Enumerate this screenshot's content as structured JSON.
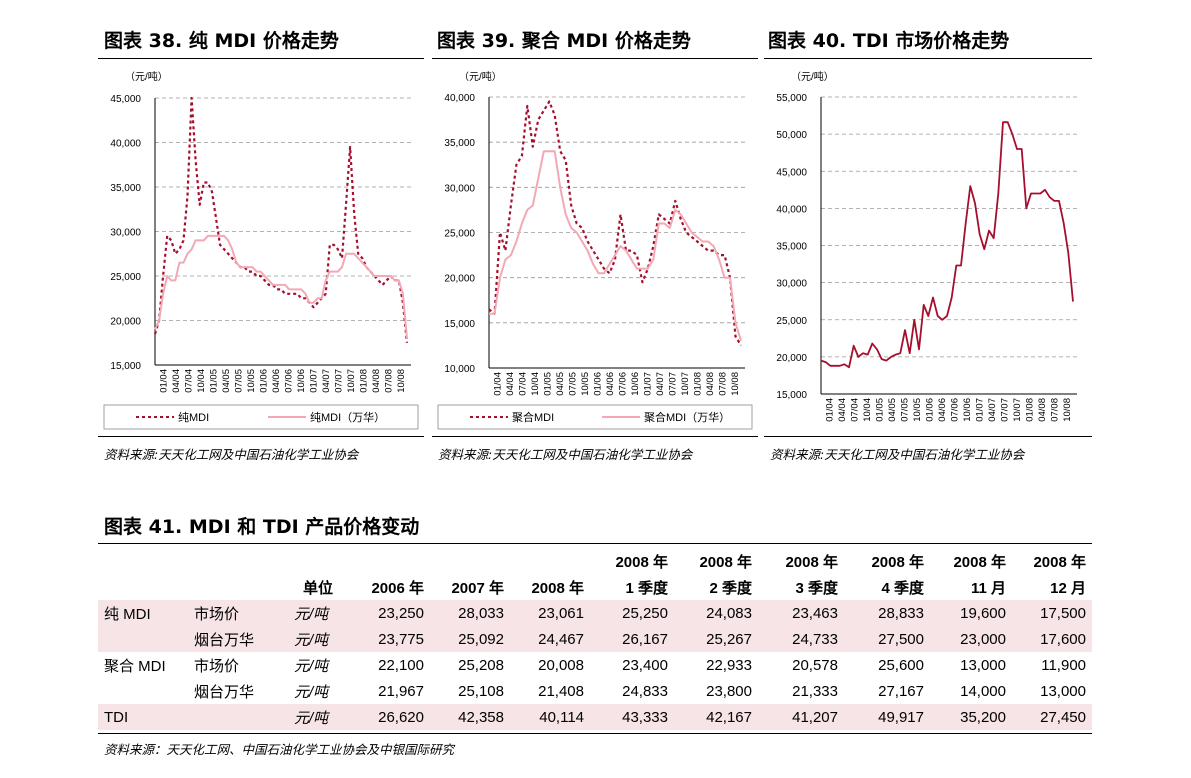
{
  "charts_header": [
    {
      "title": "图表 38.  纯 MDI 价格走势"
    },
    {
      "title": "图表 39.  聚合 MDI 价格走势"
    },
    {
      "title": "图表 40. TDI 市场价格走势"
    }
  ],
  "source_note": "资料来源:天天化工网及中国石油化学工业协会",
  "colors": {
    "dark_red": "#a50f2d",
    "light_pink": "#f2a9b4",
    "grid": "#999999",
    "shade": "#f6e4e6"
  },
  "chart_data": [
    {
      "type": "line",
      "unit_label": "（元/吨）",
      "ylim": [
        15000,
        45000
      ],
      "y_ticks": [
        "15,000",
        "20,000",
        "25,000",
        "30,000",
        "35,000",
        "40,000",
        "45,000"
      ],
      "x_tick_labels": [
        "01/04",
        "04/04",
        "07/04",
        "10/04",
        "01/05",
        "04/05",
        "07/05",
        "10/05",
        "01/06",
        "04/06",
        "07/06",
        "10/06",
        "01/07",
        "04/07",
        "07/07",
        "10/07",
        "01/08",
        "04/08",
        "07/08",
        "10/08"
      ],
      "grid": "horizontal-dashed",
      "legend_position": "bottom",
      "series": [
        {
          "name": "纯MDI",
          "style": "dotted",
          "color": "#a50f2d",
          "values": [
            18500,
            20000,
            25000,
            29500,
            29000,
            27500,
            28000,
            29000,
            34000,
            45000,
            38000,
            33000,
            35500,
            35500,
            34500,
            31500,
            28500,
            28000,
            27500,
            27000,
            26500,
            26000,
            26000,
            25500,
            25500,
            25000,
            25000,
            24500,
            24000,
            24000,
            23500,
            23500,
            23000,
            23000,
            23000,
            23000,
            22500,
            22500,
            22000,
            21500,
            22000,
            22500,
            23000,
            28500,
            28500,
            28000,
            27000,
            33000,
            39500,
            32000,
            27500,
            27000,
            26000,
            25500,
            25000,
            24500,
            24000,
            24500,
            25000,
            24500,
            24500,
            22000,
            17500
          ]
        },
        {
          "name": "纯MDI（万华）",
          "style": "solid",
          "color": "#f2a9b4",
          "values": [
            19000,
            20000,
            23000,
            25000,
            24500,
            24500,
            26500,
            26500,
            27500,
            28000,
            29000,
            29000,
            29000,
            29500,
            29500,
            29500,
            29500,
            29500,
            29000,
            28000,
            26500,
            26000,
            26000,
            26000,
            26000,
            25500,
            25500,
            25000,
            24500,
            24000,
            24000,
            24000,
            24000,
            23500,
            23500,
            23500,
            23500,
            23000,
            22000,
            22000,
            22500,
            22500,
            24500,
            25500,
            25500,
            25500,
            26000,
            27500,
            27500,
            27500,
            27000,
            26500,
            26000,
            25500,
            25000,
            25000,
            25000,
            25000,
            25000,
            24500,
            24500,
            23000,
            18000
          ]
        }
      ]
    },
    {
      "type": "line",
      "unit_label": "（元/吨）",
      "ylim": [
        10000,
        40000
      ],
      "y_ticks": [
        "10,000",
        "15,000",
        "20,000",
        "25,000",
        "30,000",
        "35,000",
        "40,000"
      ],
      "x_tick_labels": [
        "01/04",
        "04/04",
        "07/04",
        "10/04",
        "01/05",
        "04/05",
        "07/05",
        "10/05",
        "01/06",
        "04/06",
        "07/06",
        "10/06",
        "01/07",
        "04/07",
        "07/07",
        "10/07",
        "01/08",
        "04/08",
        "07/08",
        "10/08"
      ],
      "grid": "horizontal-dashed",
      "legend_position": "bottom",
      "series": [
        {
          "name": "聚合MDI",
          "style": "dotted",
          "color": "#a50f2d",
          "values": [
            16500,
            16000,
            25000,
            23000,
            28000,
            32500,
            33500,
            39000,
            34500,
            37500,
            38500,
            39500,
            38000,
            34000,
            33000,
            28000,
            26000,
            25500,
            24000,
            23000,
            22000,
            21000,
            20500,
            22000,
            27000,
            23000,
            23000,
            22500,
            19500,
            21000,
            23500,
            27000,
            26500,
            26000,
            28500,
            26500,
            25000,
            24500,
            24000,
            23500,
            23000,
            23000,
            22500,
            22500,
            20000,
            13500,
            12500
          ]
        },
        {
          "name": "聚合MDI（万华）",
          "style": "solid",
          "color": "#f2a9b4",
          "values": [
            16000,
            16000,
            20000,
            22000,
            22500,
            24000,
            26000,
            27500,
            28000,
            31000,
            34000,
            34000,
            34000,
            30000,
            27000,
            25500,
            25000,
            24000,
            23000,
            21500,
            20500,
            20500,
            21500,
            22500,
            23500,
            23000,
            22000,
            21000,
            21000,
            21000,
            22000,
            26000,
            26000,
            25500,
            27500,
            27000,
            26000,
            25000,
            24500,
            24000,
            24000,
            23500,
            22000,
            20000,
            20000,
            15000,
            13000
          ]
        }
      ]
    },
    {
      "type": "line",
      "unit_label": "（元/吨）",
      "ylim": [
        15000,
        55000
      ],
      "y_ticks": [
        "15,000",
        "20,000",
        "25,000",
        "30,000",
        "35,000",
        "40,000",
        "45,000",
        "50,000",
        "55,000"
      ],
      "x_tick_labels": [
        "01/04",
        "04/04",
        "07/04",
        "10/04",
        "01/05",
        "04/05",
        "07/05",
        "10/05",
        "01/06",
        "04/06",
        "07/06",
        "10/06",
        "01/07",
        "04/07",
        "07/07",
        "10/07",
        "01/08",
        "04/08",
        "07/08",
        "10/08"
      ],
      "grid": "horizontal-dashed",
      "series": [
        {
          "name": "",
          "style": "solid",
          "color": "#a50f2d",
          "values": [
            19500,
            19300,
            18800,
            18800,
            18800,
            19000,
            18600,
            21500,
            20000,
            20500,
            20300,
            21800,
            21000,
            19700,
            19500,
            20000,
            20300,
            20500,
            23600,
            20500,
            25000,
            21000,
            27000,
            25500,
            28000,
            25500,
            25000,
            25500,
            28000,
            32300,
            32300,
            38000,
            43000,
            40700,
            36500,
            34500,
            37000,
            36000,
            42000,
            51600,
            51600,
            50000,
            48000,
            48000,
            40000,
            42000,
            42000,
            42000,
            42500,
            41500,
            41000,
            41000,
            38000,
            34000,
            27450
          ]
        }
      ]
    }
  ],
  "table": {
    "title": "图表 41. MDI 和 TDI 产品价格变动",
    "header_row1": [
      "",
      "",
      "",
      "",
      "",
      "",
      "2008 年",
      "2008 年",
      "2008 年",
      "2008 年",
      "2008 年",
      "2008 年"
    ],
    "header_row2": [
      "",
      "",
      "单位",
      "2006 年",
      "2007 年",
      "2008 年",
      "1 季度",
      "2 季度",
      "3 季度",
      "4 季度",
      "11 月",
      "12 月"
    ],
    "rows": [
      {
        "product": "纯 MDI",
        "type": "市场价",
        "unit": "元/吨",
        "values": [
          "23,250",
          "28,033",
          "23,061",
          "25,250",
          "24,083",
          "23,463",
          "28,833",
          "19,600",
          "17,500"
        ]
      },
      {
        "product": "",
        "type": "烟台万华",
        "unit": "元/吨",
        "values": [
          "23,775",
          "25,092",
          "24,467",
          "26,167",
          "25,267",
          "24,733",
          "27,500",
          "23,000",
          "17,600"
        ]
      },
      {
        "product": "聚合 MDI",
        "type": "市场价",
        "unit": "元/吨",
        "values": [
          "22,100",
          "25,208",
          "20,008",
          "23,400",
          "22,933",
          "20,578",
          "25,600",
          "13,000",
          "11,900"
        ]
      },
      {
        "product": "",
        "type": "烟台万华",
        "unit": "元/吨",
        "values": [
          "21,967",
          "25,108",
          "21,408",
          "24,833",
          "23,800",
          "21,333",
          "27,167",
          "14,000",
          "13,000"
        ]
      },
      {
        "product": "TDI",
        "type": "",
        "unit": "元/吨",
        "values": [
          "26,620",
          "42,358",
          "40,114",
          "43,333",
          "42,167",
          "41,207",
          "49,917",
          "35,200",
          "27,450"
        ]
      }
    ],
    "source": "资料来源：天天化工网、中国石油化学工业协会及中银国际研究"
  }
}
